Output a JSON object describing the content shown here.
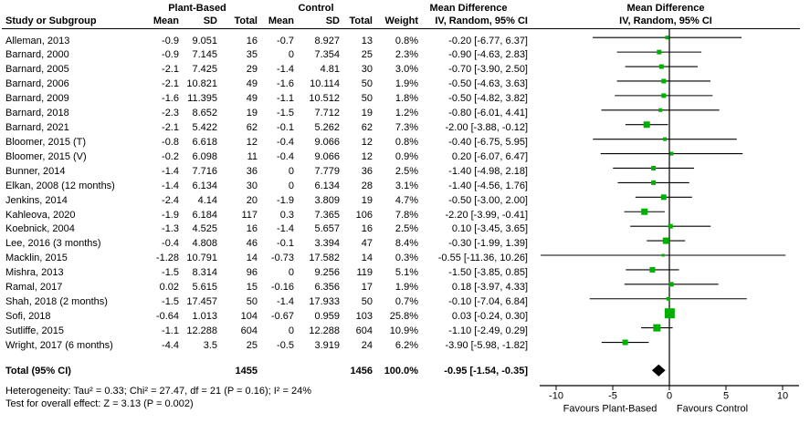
{
  "headers": {
    "group1": "Plant-Based",
    "group2": "Control",
    "md_text_col": "Mean Difference",
    "sub_text_col": "IV, Random, 95% CI",
    "md_plot_col": "Mean Difference",
    "sub_plot_col": "IV, Random, 95% CI",
    "study": "Study or Subgroup",
    "mean": "Mean",
    "sd": "SD",
    "total": "Total",
    "weight": "Weight"
  },
  "footer": {
    "heterogeneity": "Heterogeneity: Tau² = 0.33; Chi² = 27.47, df = 21 (P = 0.16); I² = 24%",
    "overall_effect": "Test for overall effect: Z = 3.13 (P = 0.002)"
  },
  "chart_data": {
    "type": "scatter",
    "subtype": "forest-plot",
    "title": "Mean Difference IV, Random, 95% CI",
    "xlim": [
      -11.4,
      11.4
    ],
    "x_ticks": [
      -10,
      -5,
      0,
      5,
      10
    ],
    "axis_label_left": "Favours Plant-Based",
    "axis_label_right": "Favours Control",
    "marker_color": "#00b000",
    "line_color": "#000000",
    "studies": [
      {
        "name": "Alleman, 2013",
        "pb_mean": "-0.9",
        "pb_sd": "9.051",
        "pb_n": "16",
        "c_mean": "-0.7",
        "c_sd": "8.927",
        "c_n": "13",
        "weight": "0.8%",
        "ci_label": "-0.20 [-6.77, 6.37]",
        "md": -0.2,
        "lo": -6.77,
        "hi": 6.37,
        "w": 0.8
      },
      {
        "name": "Barnard, 2000",
        "pb_mean": "-0.9",
        "pb_sd": "7.145",
        "pb_n": "35",
        "c_mean": "0",
        "c_sd": "7.354",
        "c_n": "25",
        "weight": "2.3%",
        "ci_label": "-0.90 [-4.63, 2.83]",
        "md": -0.9,
        "lo": -4.63,
        "hi": 2.83,
        "w": 2.3
      },
      {
        "name": "Barnard, 2005",
        "pb_mean": "-2.1",
        "pb_sd": "7.425",
        "pb_n": "29",
        "c_mean": "-1.4",
        "c_sd": "4.81",
        "c_n": "30",
        "weight": "3.0%",
        "ci_label": "-0.70 [-3.90, 2.50]",
        "md": -0.7,
        "lo": -3.9,
        "hi": 2.5,
        "w": 3.0
      },
      {
        "name": "Barnard, 2006",
        "pb_mean": "-2.1",
        "pb_sd": "10.821",
        "pb_n": "49",
        "c_mean": "-1.6",
        "c_sd": "10.114",
        "c_n": "50",
        "weight": "1.9%",
        "ci_label": "-0.50 [-4.63, 3.63]",
        "md": -0.5,
        "lo": -4.63,
        "hi": 3.63,
        "w": 1.9
      },
      {
        "name": "Barnard, 2009",
        "pb_mean": "-1.6",
        "pb_sd": "11.395",
        "pb_n": "49",
        "c_mean": "-1.1",
        "c_sd": "10.512",
        "c_n": "50",
        "weight": "1.8%",
        "ci_label": "-0.50 [-4.82, 3.82]",
        "md": -0.5,
        "lo": -4.82,
        "hi": 3.82,
        "w": 1.8
      },
      {
        "name": "Barnard, 2018",
        "pb_mean": "-2.3",
        "pb_sd": "8.652",
        "pb_n": "19",
        "c_mean": "-1.5",
        "c_sd": "7.712",
        "c_n": "19",
        "weight": "1.2%",
        "ci_label": "-0.80 [-6.01, 4.41]",
        "md": -0.8,
        "lo": -6.01,
        "hi": 4.41,
        "w": 1.2
      },
      {
        "name": "Barnard, 2021",
        "pb_mean": "-2.1",
        "pb_sd": "5.422",
        "pb_n": "62",
        "c_mean": "-0.1",
        "c_sd": "5.262",
        "c_n": "62",
        "weight": "7.3%",
        "ci_label": "-2.00 [-3.88, -0.12]",
        "md": -2.0,
        "lo": -3.88,
        "hi": -0.12,
        "w": 7.3
      },
      {
        "name": "Bloomer, 2015 (T)",
        "pb_mean": "-0.8",
        "pb_sd": "6.618",
        "pb_n": "12",
        "c_mean": "-0.4",
        "c_sd": "9.066",
        "c_n": "12",
        "weight": "0.8%",
        "ci_label": "-0.40 [-6.75, 5.95]",
        "md": -0.4,
        "lo": -6.75,
        "hi": 5.95,
        "w": 0.8
      },
      {
        "name": "Bloomer, 2015 (V)",
        "pb_mean": "-0.2",
        "pb_sd": "6.098",
        "pb_n": "11",
        "c_mean": "-0.4",
        "c_sd": "9.066",
        "c_n": "12",
        "weight": "0.9%",
        "ci_label": "0.20 [-6.07, 6.47]",
        "md": 0.2,
        "lo": -6.07,
        "hi": 6.47,
        "w": 0.9
      },
      {
        "name": "Bunner, 2014",
        "pb_mean": "-1.4",
        "pb_sd": "7.716",
        "pb_n": "36",
        "c_mean": "0",
        "c_sd": "7.779",
        "c_n": "36",
        "weight": "2.5%",
        "ci_label": "-1.40 [-4.98, 2.18]",
        "md": -1.4,
        "lo": -4.98,
        "hi": 2.18,
        "w": 2.5
      },
      {
        "name": "Elkan, 2008 (12 months)",
        "pb_mean": "-1.4",
        "pb_sd": "6.134",
        "pb_n": "30",
        "c_mean": "0",
        "c_sd": "6.134",
        "c_n": "28",
        "weight": "3.1%",
        "ci_label": "-1.40 [-4.56, 1.76]",
        "md": -1.4,
        "lo": -4.56,
        "hi": 1.76,
        "w": 3.1
      },
      {
        "name": "Jenkins, 2014",
        "pb_mean": "-2.4",
        "pb_sd": "4.14",
        "pb_n": "20",
        "c_mean": "-1.9",
        "c_sd": "3.809",
        "c_n": "19",
        "weight": "4.7%",
        "ci_label": "-0.50 [-3.00, 2.00]",
        "md": -0.5,
        "lo": -3.0,
        "hi": 2.0,
        "w": 4.7
      },
      {
        "name": "Kahleova, 2020",
        "pb_mean": "-1.9",
        "pb_sd": "6.184",
        "pb_n": "117",
        "c_mean": "0.3",
        "c_sd": "7.365",
        "c_n": "106",
        "weight": "7.8%",
        "ci_label": "-2.20 [-3.99, -0.41]",
        "md": -2.2,
        "lo": -3.99,
        "hi": -0.41,
        "w": 7.8
      },
      {
        "name": "Koebnick, 2004",
        "pb_mean": "-1.3",
        "pb_sd": "4.525",
        "pb_n": "16",
        "c_mean": "-1.4",
        "c_sd": "5.657",
        "c_n": "16",
        "weight": "2.5%",
        "ci_label": "0.10 [-3.45, 3.65]",
        "md": 0.1,
        "lo": -3.45,
        "hi": 3.65,
        "w": 2.5
      },
      {
        "name": "Lee, 2016 (3 months)",
        "pb_mean": "-0.4",
        "pb_sd": "4.808",
        "pb_n": "46",
        "c_mean": "-0.1",
        "c_sd": "3.394",
        "c_n": "47",
        "weight": "8.4%",
        "ci_label": "-0.30 [-1.99, 1.39]",
        "md": -0.3,
        "lo": -1.99,
        "hi": 1.39,
        "w": 8.4
      },
      {
        "name": "Macklin, 2015",
        "pb_mean": "-1.28",
        "pb_sd": "10.791",
        "pb_n": "14",
        "c_mean": "-0.73",
        "c_sd": "17.582",
        "c_n": "14",
        "weight": "0.3%",
        "ci_label": "-0.55 [-11.36, 10.26]",
        "md": -0.55,
        "lo": -11.36,
        "hi": 10.26,
        "w": 0.3
      },
      {
        "name": "Mishra, 2013",
        "pb_mean": "-1.5",
        "pb_sd": "8.314",
        "pb_n": "96",
        "c_mean": "0",
        "c_sd": "9.256",
        "c_n": "119",
        "weight": "5.1%",
        "ci_label": "-1.50 [-3.85, 0.85]",
        "md": -1.5,
        "lo": -3.85,
        "hi": 0.85,
        "w": 5.1
      },
      {
        "name": "Ramal, 2017",
        "pb_mean": "0.02",
        "pb_sd": "5.615",
        "pb_n": "15",
        "c_mean": "-0.16",
        "c_sd": "6.356",
        "c_n": "17",
        "weight": "1.9%",
        "ci_label": "0.18 [-3.97, 4.33]",
        "md": 0.18,
        "lo": -3.97,
        "hi": 4.33,
        "w": 1.9
      },
      {
        "name": "Shah, 2018 (2 months)",
        "pb_mean": "-1.5",
        "pb_sd": "17.457",
        "pb_n": "50",
        "c_mean": "-1.4",
        "c_sd": "17.933",
        "c_n": "50",
        "weight": "0.7%",
        "ci_label": "-0.10 [-7.04, 6.84]",
        "md": -0.1,
        "lo": -7.04,
        "hi": 6.84,
        "w": 0.7
      },
      {
        "name": "Sofi, 2018",
        "pb_mean": "-0.64",
        "pb_sd": "1.013",
        "pb_n": "104",
        "c_mean": "-0.67",
        "c_sd": "0.959",
        "c_n": "103",
        "weight": "25.8%",
        "ci_label": "0.03 [-0.24, 0.30]",
        "md": 0.03,
        "lo": -0.24,
        "hi": 0.3,
        "w": 25.8
      },
      {
        "name": "Sutliffe, 2015",
        "pb_mean": "-1.1",
        "pb_sd": "12.288",
        "pb_n": "604",
        "c_mean": "0",
        "c_sd": "12.288",
        "c_n": "604",
        "weight": "10.9%",
        "ci_label": "-1.10 [-2.49, 0.29]",
        "md": -1.1,
        "lo": -2.49,
        "hi": 0.29,
        "w": 10.9
      },
      {
        "name": "Wright, 2017 (6 months)",
        "pb_mean": "-4.4",
        "pb_sd": "3.5",
        "pb_n": "25",
        "c_mean": "-0.5",
        "c_sd": "3.919",
        "c_n": "24",
        "weight": "6.2%",
        "ci_label": "-3.90 [-5.98, -1.82]",
        "md": -3.9,
        "lo": -5.98,
        "hi": -1.82,
        "w": 6.2
      }
    ],
    "total": {
      "label": "Total (95% CI)",
      "pb_n": "1455",
      "c_n": "1456",
      "weight": "100.0%",
      "ci_label": "-0.95 [-1.54, -0.35]",
      "md": -0.95,
      "lo": -1.54,
      "hi": -0.35
    }
  }
}
